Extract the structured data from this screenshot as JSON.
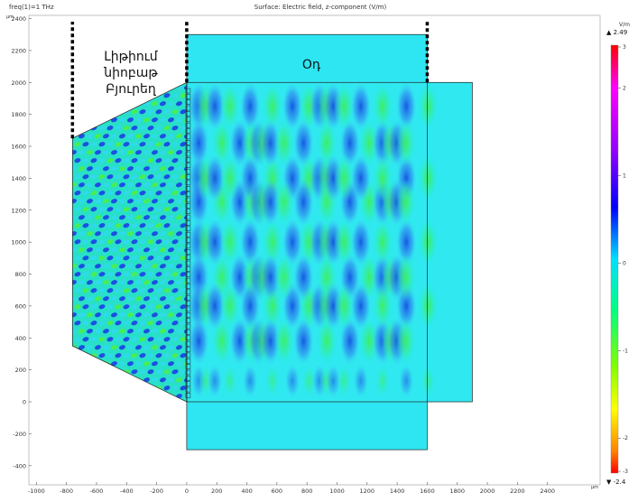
{
  "header": {
    "freq_label": "freq(1)=1 THz",
    "title": "Surface: Electric field, z-component (V/m)",
    "y_unit": "µm",
    "x_unit": "µm"
  },
  "annotations": {
    "lens_lines": [
      "Լիթիում",
      "նիոբաթ",
      "Բյուրեղ"
    ],
    "air_label": "Օդ"
  },
  "colorbar": {
    "unit": "V/m",
    "max_label": "▲ 2.49",
    "min_label": "▼ -2.4",
    "max": 2.49,
    "min": -2.4,
    "ticks": [
      3,
      2,
      1,
      0,
      -1,
      -2,
      -3
    ],
    "tick_labels": [
      "3",
      "2",
      "1",
      "0",
      "-1",
      "-2",
      "-3"
    ]
  },
  "chart_data": {
    "type": "heatmap",
    "title": "Surface: Electric field, z-component (V/m)",
    "xlim": [
      -1050,
      2750
    ],
    "ylim": [
      -520,
      2420
    ],
    "x_ticks": [
      -1000,
      -800,
      -600,
      -400,
      -200,
      0,
      200,
      400,
      600,
      800,
      1000,
      1200,
      1400,
      1600,
      1800,
      2000,
      2200,
      2400
    ],
    "x_tick_labels": [
      "-1000",
      "-800",
      "-600",
      "-400",
      "-200",
      "0",
      "200",
      "400",
      "600",
      "800",
      "1000",
      "1200",
      "1400",
      "1600",
      "1800",
      "2000",
      "2200",
      "2400"
    ],
    "y_ticks": [
      2400,
      2200,
      2000,
      1800,
      1600,
      1400,
      1200,
      1000,
      800,
      600,
      400,
      200,
      0,
      -200,
      -400
    ],
    "y_tick_labels": [
      "2400",
      "2200",
      "2000",
      "1800",
      "1600",
      "1400",
      "1200",
      "1000",
      "800",
      "600",
      "400",
      "200",
      "0",
      "-200",
      "-400"
    ],
    "crystal_polygon": [
      [
        -760,
        1650
      ],
      [
        0,
        2000
      ],
      [
        0,
        0
      ],
      [
        -760,
        350
      ]
    ],
    "air_box": [
      [
        0,
        -300
      ],
      [
        1600,
        2300
      ]
    ],
    "outer_box": [
      [
        0,
        0
      ],
      [
        1900,
        2000
      ]
    ],
    "dotted_lines_x": [
      -760,
      0,
      1600
    ],
    "dotted_lines_y": [
      [
        1650,
        2380
      ],
      [
        2000,
        2380
      ],
      [
        2000,
        2380
      ]
    ],
    "field_min": -2.4,
    "field_max": 2.49,
    "colormap": "rainbow"
  }
}
